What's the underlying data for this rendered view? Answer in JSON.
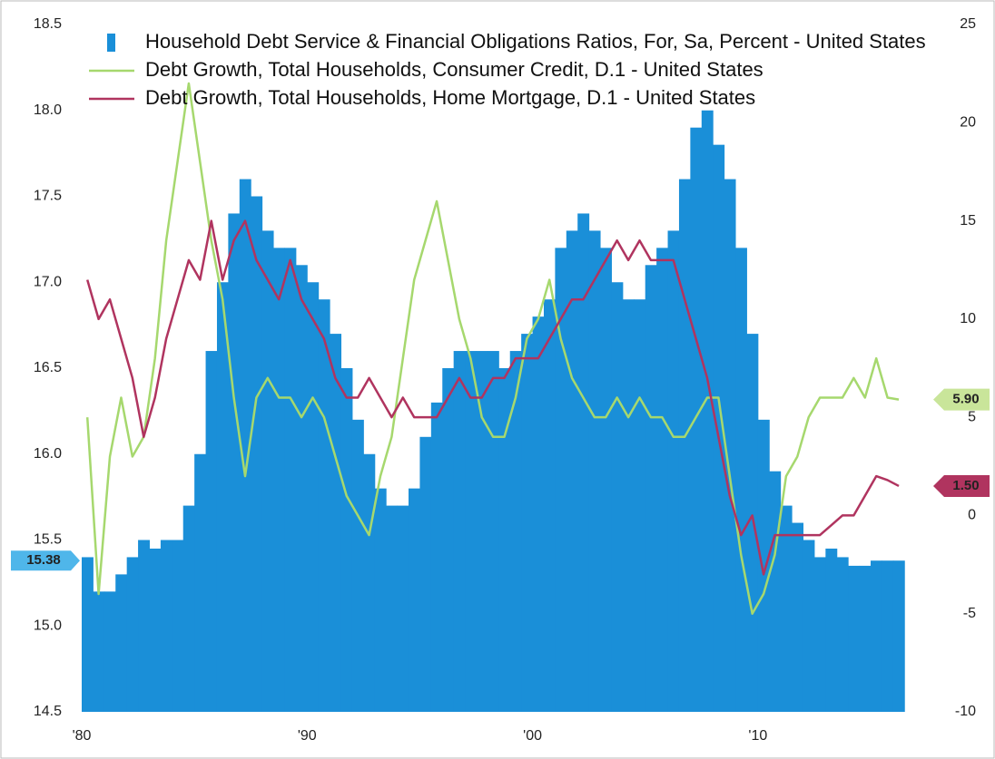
{
  "chart_data": {
    "type": "bar-line",
    "x": [
      1980,
      1980.5,
      1981,
      1981.5,
      1982,
      1982.5,
      1983,
      1983.5,
      1984,
      1984.5,
      1985,
      1985.5,
      1986,
      1986.5,
      1987,
      1987.5,
      1988,
      1988.5,
      1989,
      1989.5,
      1990,
      1990.5,
      1991,
      1991.5,
      1992,
      1992.5,
      1993,
      1993.5,
      1994,
      1994.5,
      1995,
      1995.5,
      1996,
      1996.5,
      1997,
      1997.5,
      1998,
      1998.5,
      1999,
      1999.5,
      2000,
      2000.5,
      2001,
      2001.5,
      2002,
      2002.5,
      2003,
      2003.5,
      2004,
      2004.5,
      2005,
      2005.5,
      2006,
      2006.5,
      2007,
      2007.5,
      2008,
      2008.5,
      2009,
      2009.5,
      2010,
      2010.5,
      2011,
      2011.5,
      2012,
      2012.5,
      2013,
      2013.5,
      2014,
      2014.5,
      2015,
      2015.5,
      2016
    ],
    "series": [
      {
        "name": "Household Debt Service & Financial Obligations Ratios, For, Sa, Percent - United States",
        "type": "bar",
        "color": "#1a8fd8",
        "values": [
          15.4,
          15.2,
          15.2,
          15.3,
          15.4,
          15.5,
          15.45,
          15.5,
          15.5,
          15.7,
          16.0,
          16.6,
          17.0,
          17.4,
          17.6,
          17.5,
          17.3,
          17.2,
          17.2,
          17.1,
          17.0,
          16.9,
          16.7,
          16.5,
          16.2,
          16.0,
          15.8,
          15.7,
          15.7,
          15.8,
          16.1,
          16.3,
          16.5,
          16.6,
          16.6,
          16.6,
          16.6,
          16.5,
          16.6,
          16.7,
          16.8,
          16.9,
          17.2,
          17.3,
          17.4,
          17.3,
          17.2,
          17.0,
          16.9,
          16.9,
          17.1,
          17.2,
          17.3,
          17.6,
          17.9,
          18.0,
          17.8,
          17.6,
          17.2,
          16.7,
          16.2,
          15.9,
          15.7,
          15.6,
          15.5,
          15.4,
          15.45,
          15.4,
          15.35,
          15.35,
          15.38,
          15.38,
          15.38
        ],
        "end_label": {
          "value": 15.38,
          "label": "15.38"
        }
      },
      {
        "name": "Debt Growth, Total Households, Consumer Credit, D.1 - United States",
        "type": "line",
        "axis": "y2",
        "color": "#a6d86e",
        "values": [
          5,
          -4,
          3,
          6,
          3,
          4,
          8,
          14,
          18,
          22,
          18,
          14,
          11,
          6,
          2,
          6,
          7,
          6,
          6,
          5,
          6,
          5,
          3,
          1,
          0,
          -1,
          2,
          4,
          8,
          12,
          14,
          16,
          13,
          10,
          8,
          5,
          4,
          4,
          6,
          9,
          10,
          12,
          9,
          7,
          6,
          5,
          5,
          6,
          5,
          6,
          5,
          5,
          4,
          4,
          5,
          6,
          6,
          2,
          -2,
          -5,
          -4,
          -2,
          2,
          3,
          5,
          6,
          6,
          6,
          7,
          6,
          8,
          6,
          5.9
        ],
        "end_label": {
          "value": 5.9,
          "label": "5.90"
        }
      },
      {
        "name": "Debt Growth, Total Households, Home Mortgage, D.1 - United States",
        "type": "line",
        "axis": "y2",
        "color": "#b0345f",
        "values": [
          12,
          10,
          11,
          9,
          7,
          4,
          6,
          9,
          11,
          13,
          12,
          15,
          12,
          14,
          15,
          13,
          12,
          11,
          13,
          11,
          10,
          9,
          7,
          6,
          6,
          7,
          6,
          5,
          6,
          5,
          5,
          5,
          6,
          7,
          6,
          6,
          7,
          7,
          8,
          8,
          8,
          9,
          10,
          11,
          11,
          12,
          13,
          14,
          13,
          14,
          13,
          13,
          13,
          11,
          9,
          7,
          4,
          1,
          -1,
          0,
          -3,
          -1,
          -1,
          -1,
          -1,
          -1,
          -0.5,
          0,
          0,
          1,
          2,
          1.8,
          1.5
        ],
        "end_label": {
          "value": 1.5,
          "label": "1.50"
        }
      }
    ],
    "xlim": [
      1980,
      2016.45
    ],
    "xticks": [
      {
        "value": 1980,
        "label": "'80"
      },
      {
        "value": 1990,
        "label": "'90"
      },
      {
        "value": 2000,
        "label": "'00"
      },
      {
        "value": 2010,
        "label": "'10"
      }
    ],
    "ylim": [
      14.5,
      18.5
    ],
    "yticks": [
      {
        "value": 14.5,
        "label": "14.5"
      },
      {
        "value": 15,
        "label": "15.0"
      },
      {
        "value": 15.5,
        "label": "15.5"
      },
      {
        "value": 16,
        "label": "16.0"
      },
      {
        "value": 16.5,
        "label": "16.5"
      },
      {
        "value": 17,
        "label": "17.0"
      },
      {
        "value": 17.5,
        "label": "17.5"
      },
      {
        "value": 18,
        "label": "18.0"
      },
      {
        "value": 18.5,
        "label": "18.5"
      }
    ],
    "y2lim": [
      -10,
      25
    ],
    "y2ticks": [
      -10,
      -5,
      0,
      5,
      10,
      15,
      20,
      25
    ],
    "legend": "top-left",
    "grid": false
  }
}
